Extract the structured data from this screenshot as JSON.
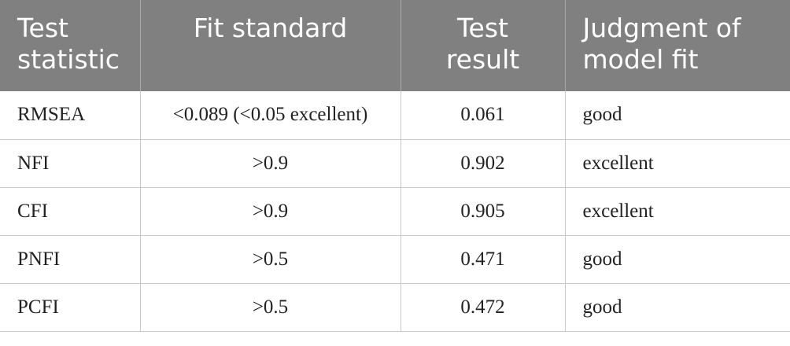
{
  "table": {
    "header": [
      "Test statistic",
      "Fit standard",
      "Test result",
      "Judgment of model fit"
    ],
    "rows": [
      [
        "RMSEA",
        "<0.089 (<0.05 excellent)",
        "0.061",
        "good"
      ],
      [
        "NFI",
        ">0.9",
        "0.902",
        "excellent"
      ],
      [
        "CFI",
        ">0.9",
        "0.905",
        "excellent"
      ],
      [
        "PNFI",
        ">0.5",
        "0.471",
        "good"
      ],
      [
        "PCFI",
        ">0.5",
        "0.472",
        "good"
      ]
    ]
  }
}
